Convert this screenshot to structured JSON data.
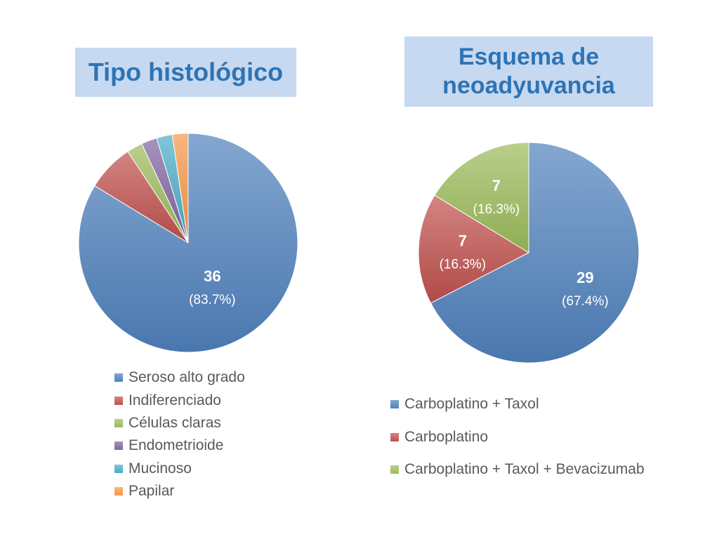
{
  "charts": {
    "left": {
      "title": "Tipo histológico",
      "chart_data": {
        "type": "pie",
        "categories": [
          "Seroso alto grado",
          "Indiferenciado",
          "Células claras",
          "Endometrioide",
          "Mucinoso",
          "Papilar"
        ],
        "values": [
          36,
          3,
          1,
          1,
          1,
          1
        ],
        "colors": [
          "#4f81bd",
          "#c0504d",
          "#9bbb59",
          "#8064a2",
          "#4bacc6",
          "#f79646"
        ],
        "data_labels": [
          {
            "index": 0,
            "value": "36",
            "percent": "(83.7%)"
          }
        ],
        "legend_position": "bottom"
      }
    },
    "right": {
      "title_line1": "Esquema de",
      "title_line2": "neoadyuvancia",
      "chart_data": {
        "type": "pie",
        "categories": [
          "Carboplatino + Taxol",
          "Carboplatino",
          "Carboplatino + Taxol + Bevacizumab"
        ],
        "values": [
          29,
          7,
          7
        ],
        "colors": [
          "#4f81bd",
          "#c0504d",
          "#9bbb59"
        ],
        "data_labels": [
          {
            "index": 0,
            "value": "29",
            "percent": "(67.4%)"
          },
          {
            "index": 1,
            "value": "7",
            "percent": "(16.3%)"
          },
          {
            "index": 2,
            "value": "7",
            "percent": "(16.3%)"
          }
        ],
        "legend_position": "bottom"
      }
    }
  }
}
